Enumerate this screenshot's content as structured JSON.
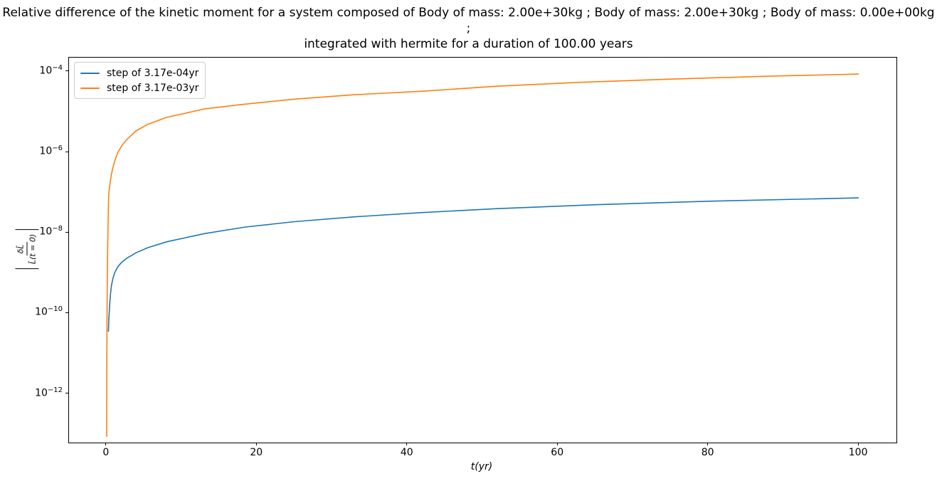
{
  "title": {
    "line1": "Relative difference of the kinetic moment for a system composed of Body of mass: 2.00e+30kg ; Body of mass: 2.00e+30kg ; Body of mass: 0.00e+00kg ;",
    "line2": "integrated with hermite for a duration of 100.00 years"
  },
  "chart_data": {
    "type": "line",
    "title": "Relative difference of the kinetic moment for a system composed of Body of mass: 2.00e+30kg ; Body of mass: 2.00e+30kg ; Body of mass: 0.00e+00kg ; integrated with hermite for a duration of 100.00 years",
    "xlabel": "t(yr)",
    "ylabel": {
      "numerator": "δL̄",
      "denominator": "L̄(t = 0)"
    },
    "x_axis": "t in years, linear",
    "y_axis": "relative kinetic moment difference, log scale",
    "grid": false,
    "legend_position": "upper-left",
    "xlim": [
      -5,
      105
    ],
    "ylim_log10": [
      -13.21,
      -3.647
    ],
    "x_ticks": [
      0,
      20,
      40,
      60,
      80,
      100
    ],
    "y_tick_exponents": [
      -4,
      -6,
      -8,
      -10,
      -12
    ],
    "series": [
      {
        "name": "step of 3.17e-04yr",
        "color": "#1f77b4",
        "points": [
          [
            0.24,
            3.5e-11
          ],
          [
            0.3,
            7e-11
          ],
          [
            0.38,
            1.4e-10
          ],
          [
            0.5,
            2.9e-10
          ],
          [
            0.65,
            5e-10
          ],
          [
            0.85,
            7.6e-10
          ],
          [
            1.1,
            1.05e-09
          ],
          [
            1.5,
            1.45e-09
          ],
          [
            2.0,
            1.85e-09
          ],
          [
            2.7,
            2.35e-09
          ],
          [
            3.9,
            3.2e-09
          ],
          [
            5.5,
            4.3e-09
          ],
          [
            8,
            6e-09
          ],
          [
            13,
            9.6e-09
          ],
          [
            18.5,
            1.4e-08
          ],
          [
            25,
            1.9e-08
          ],
          [
            33,
            2.5e-08
          ],
          [
            42,
            3.2e-08
          ],
          [
            52,
            4e-08
          ],
          [
            65,
            5e-08
          ],
          [
            80,
            6.1e-08
          ],
          [
            100,
            7.4e-08
          ]
        ]
      },
      {
        "name": "step of 3.17e-03yr",
        "color": "#ff7f0e",
        "points": [
          [
            0.012,
            8.5e-14
          ],
          [
            0.02,
            9e-13
          ],
          [
            0.035,
            1.1e-11
          ],
          [
            0.06,
            1.25e-10
          ],
          [
            0.1,
            1e-09
          ],
          [
            0.16,
            8e-09
          ],
          [
            0.22,
            3.3e-08
          ],
          [
            0.28,
            8.7e-08
          ],
          [
            0.38,
            1.35e-07
          ],
          [
            0.5,
            2e-07
          ],
          [
            0.65,
            2.9e-07
          ],
          [
            0.85,
            4.3e-07
          ],
          [
            1.1,
            6.3e-07
          ],
          [
            1.5,
            1e-06
          ],
          [
            2.0,
            1.45e-06
          ],
          [
            2.7,
            2.1e-06
          ],
          [
            3.9,
            3.4e-06
          ],
          [
            5.5,
            5e-06
          ],
          [
            8,
            7.4e-06
          ],
          [
            13,
            1.2e-05
          ],
          [
            18,
            1.55e-05
          ],
          [
            25,
            2.1e-05
          ],
          [
            33,
            2.7e-05
          ],
          [
            42,
            3.3e-05
          ],
          [
            52,
            4.4e-05
          ],
          [
            63,
            5.5e-05
          ],
          [
            75,
            6.6e-05
          ],
          [
            88,
            7.8e-05
          ],
          [
            100,
            8.8e-05
          ]
        ]
      }
    ]
  }
}
